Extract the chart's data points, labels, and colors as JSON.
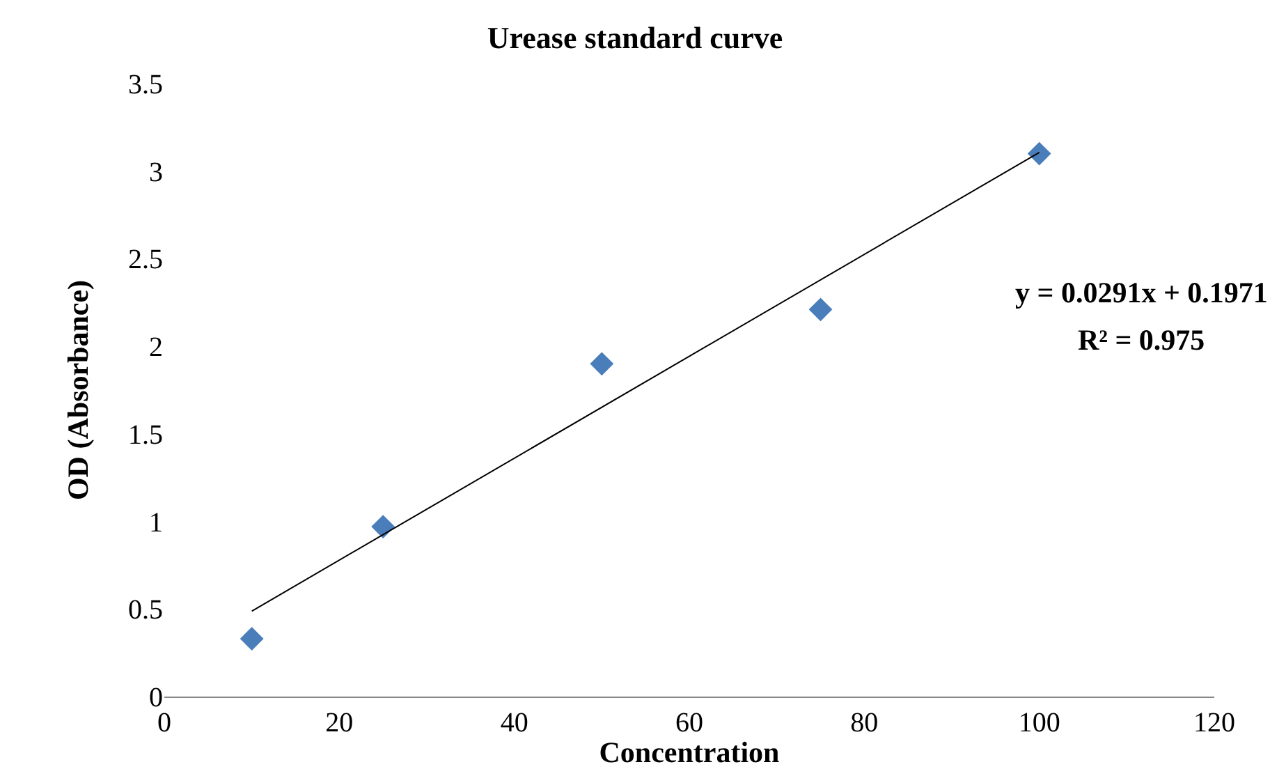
{
  "chart_data": {
    "type": "scatter",
    "title": "Urease standard curve",
    "xlabel": "Concentration",
    "ylabel": "OD (Absorbance)",
    "x": [
      10,
      25,
      50,
      75,
      100
    ],
    "series": [
      {
        "color": "#4a7ebb",
        "marker": "diamond",
        "values": [
          0.33,
          0.97,
          1.9,
          2.21,
          3.1
        ]
      },
      {
        "type": "line",
        "color": "#000000",
        "marker": "none",
        "x": [
          10,
          100
        ],
        "values": [
          0.488,
          3.107
        ]
      }
    ],
    "xlim": [
      0,
      120
    ],
    "xticks": [
      0,
      20,
      40,
      60,
      80,
      100,
      120
    ],
    "ylim": [
      0,
      3.5
    ],
    "yticks": [
      0,
      0.5,
      1,
      1.5,
      2,
      2.5,
      3,
      3.5
    ],
    "annotations": [
      "y = 0.0291x + 0.1971",
      "R² = 0.975"
    ],
    "grid": false
  }
}
